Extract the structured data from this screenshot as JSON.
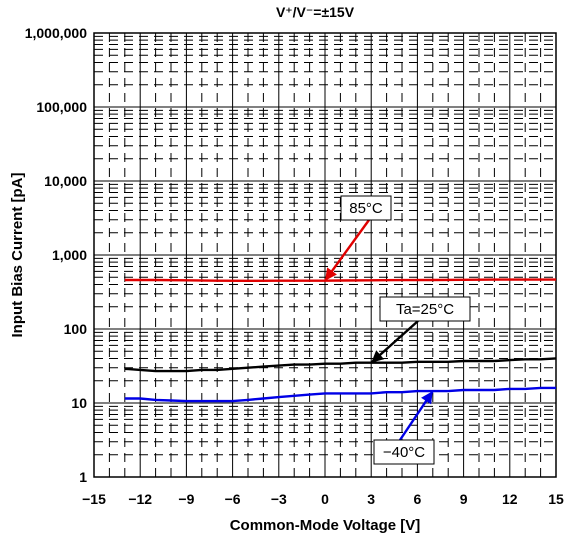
{
  "chart_data": {
    "type": "line",
    "title": "V⁺/V⁻=±15V",
    "xlabel": "Common-Mode Voltage [V]",
    "ylabel": "Input Bias Current [pA]",
    "xlim": [
      -15,
      15
    ],
    "ylim": [
      1,
      1000000
    ],
    "y_scale": "log",
    "x_ticks": [
      -15,
      -12,
      -9,
      -6,
      -3,
      0,
      3,
      6,
      9,
      12,
      15
    ],
    "x_tick_labels": [
      "−15",
      "−12",
      "−9",
      "−6",
      "−3",
      "0",
      "3",
      "6",
      "9",
      "12",
      "15"
    ],
    "y_ticks": [
      1,
      10,
      100,
      1000,
      10000,
      100000,
      1000000
    ],
    "y_tick_labels": [
      "1",
      "10",
      "100",
      "1,000",
      "10,000",
      "100,000",
      "1,000,000"
    ],
    "grid": "major solid, minor dashed",
    "series": [
      {
        "name": "85°C",
        "color": "#e00000",
        "x": [
          -13,
          -11,
          -9,
          -7,
          -5,
          -3,
          -1,
          0,
          1,
          3,
          5,
          7,
          9,
          11,
          13,
          15
        ],
        "y": [
          460,
          460,
          455,
          450,
          448,
          450,
          450,
          450,
          452,
          455,
          458,
          460,
          462,
          465,
          465,
          465
        ]
      },
      {
        "name": "Ta=25°C",
        "color": "#000000",
        "x": [
          -13,
          -12,
          -11,
          -10,
          -9,
          -8,
          -7,
          -6,
          -5,
          -4,
          -3,
          -2,
          -1,
          0,
          1,
          2,
          3,
          4,
          5,
          6,
          7,
          8,
          9,
          10,
          11,
          12,
          13,
          14,
          15
        ],
        "y": [
          29,
          28,
          27,
          27,
          27,
          28,
          28,
          29,
          30,
          31,
          32,
          33,
          33,
          34,
          34,
          35,
          35,
          35,
          35,
          36,
          36,
          36,
          37,
          37,
          37,
          38,
          39,
          39,
          40
        ]
      },
      {
        "name": "−40°C",
        "color": "#0000e6",
        "x": [
          -13,
          -12,
          -11,
          -10,
          -9,
          -8,
          -7,
          -6,
          -5,
          -4,
          -3,
          -2,
          -1,
          0,
          1,
          2,
          3,
          4,
          5,
          6,
          7,
          8,
          9,
          10,
          11,
          12,
          13,
          14,
          15
        ],
        "y": [
          11.5,
          11.5,
          11,
          10.8,
          10.6,
          10.6,
          10.6,
          10.6,
          11,
          11.5,
          12,
          12.5,
          13,
          13.5,
          13.5,
          13.5,
          13.5,
          14,
          14,
          14.5,
          14.5,
          14.5,
          15,
          15,
          15,
          15.5,
          15.5,
          16,
          16
        ]
      }
    ],
    "annotations": [
      {
        "text": "85°C",
        "series": "85°C",
        "arrow_to": {
          "x": 0,
          "y": 450
        }
      },
      {
        "text": "Ta=25°C",
        "series": "Ta=25°C",
        "arrow_to": {
          "x": 3,
          "y": 35
        }
      },
      {
        "text": "−40°C",
        "series": "−40°C",
        "arrow_to": {
          "x": 7,
          "y": 14.5
        }
      }
    ]
  }
}
